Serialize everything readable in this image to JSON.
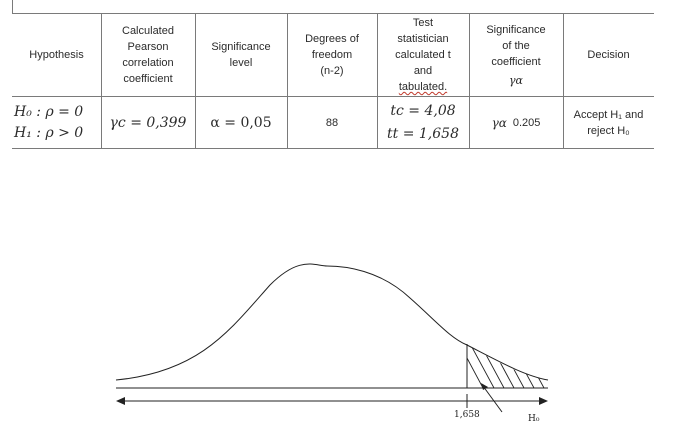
{
  "table": {
    "headers": {
      "hypothesis": "Hypothesis",
      "calculated": "Calculated\nPearson\ncorrelation\ncoefficient",
      "significance_level": "Significance\nlevel",
      "degrees": "Degrees of\nfreedom\n(n-2)",
      "test_statistic": "Test\nstatistician\ncalculated  t\nand",
      "tabulated": "tabulated.",
      "coefficient_significance": "Significance\nof the\ncoefficient",
      "coefficient_symbol": "γα",
      "decision": "Decision"
    },
    "row": {
      "h0": "H₀ : ρ = 0",
      "h1": "H₁ : ρ > 0",
      "gamma_c": "γc = 0,399",
      "alpha": "α = 0,05",
      "degrees": "88",
      "tc": "tc = 4,08",
      "tt": "tt = 1,658",
      "gamma_alpha_symbol": "γα",
      "gamma_alpha_value": "0.205",
      "decision": "Accept H₁  and\nreject H₀"
    }
  },
  "figure": {
    "critical_label": "1,658",
    "region_label": "H₀"
  }
}
